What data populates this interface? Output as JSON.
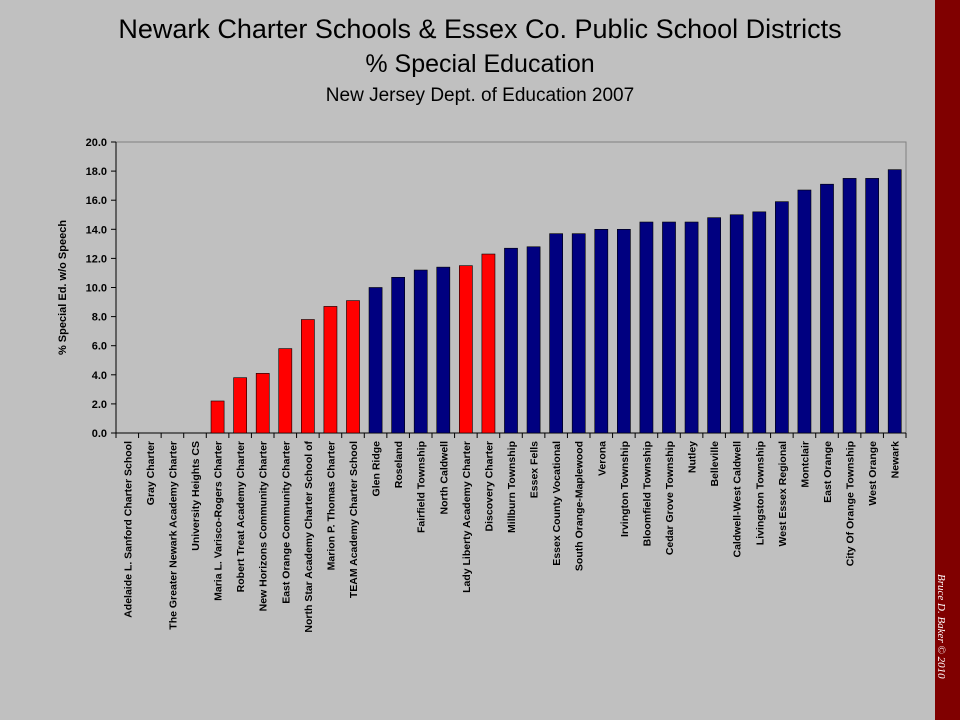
{
  "title": "Newark Charter Schools & Essex Co. Public School Districts",
  "subtitle": "% Special Education",
  "source": "New Jersey Dept. of Education 2007",
  "credit": "Bruce D. Baker © 2010",
  "chart_data": {
    "type": "bar",
    "title": "Newark Charter Schools & Essex Co. Public School Districts",
    "subtitle": "% Special Education",
    "ylabel": "% Special Ed. w/o Speech",
    "xlabel": "",
    "ylim": [
      0,
      20
    ],
    "yticks": [
      "0.0",
      "2.0",
      "4.0",
      "6.0",
      "8.0",
      "10.0",
      "12.0",
      "14.0",
      "16.0",
      "18.0",
      "20.0"
    ],
    "grid": false,
    "legend": "none",
    "colors": {
      "charter": "#ff0000",
      "district": "#000080",
      "outline": "#000000",
      "plot_bg": "#c0c0c0"
    },
    "categories": [
      "Adelaide L. Sanford Charter School",
      "Gray Charter",
      "The Greater Newark Academy Charter",
      "University Heights CS",
      "Maria L. Varisco-Rogers Charter",
      "Robert Treat Academy Charter",
      "New Horizons Community Charter",
      "East Orange Community Charter",
      "North Star Academy Charter School of",
      "Marion P. Thomas Charter",
      "TEAM Academy Charter School",
      "Glen Ridge",
      "Roseland",
      "Fairfield Township",
      "North Caldwell",
      "Lady Liberty Academy Charter",
      "Discovery Charter",
      "Millburn Township",
      "Essex Fells",
      "Essex County Vocational",
      "South Orange-Maplewood",
      "Verona",
      "Irvington Township",
      "Bloomfield Township",
      "Cedar Grove Township",
      "Nutley",
      "Belleville",
      "Caldwell-West Caldwell",
      "Livingston Township",
      "West Essex Regional",
      "Montclair",
      "East Orange",
      "City Of Orange Township",
      "West Orange",
      "Newark"
    ],
    "values": [
      0,
      0,
      0,
      0,
      2.2,
      3.8,
      4.1,
      5.8,
      7.8,
      8.7,
      9.1,
      10.0,
      10.7,
      11.2,
      11.4,
      11.5,
      12.3,
      12.7,
      12.8,
      13.7,
      13.7,
      14.0,
      14.0,
      14.5,
      14.5,
      14.5,
      14.8,
      15.0,
      15.2,
      15.9,
      16.7,
      17.1,
      17.5,
      17.5,
      18.1
    ],
    "group": [
      "charter",
      "charter",
      "charter",
      "charter",
      "charter",
      "charter",
      "charter",
      "charter",
      "charter",
      "charter",
      "charter",
      "district",
      "district",
      "district",
      "district",
      "charter",
      "charter",
      "district",
      "district",
      "district",
      "district",
      "district",
      "district",
      "district",
      "district",
      "district",
      "district",
      "district",
      "district",
      "district",
      "district",
      "district",
      "district",
      "district",
      "district"
    ]
  }
}
